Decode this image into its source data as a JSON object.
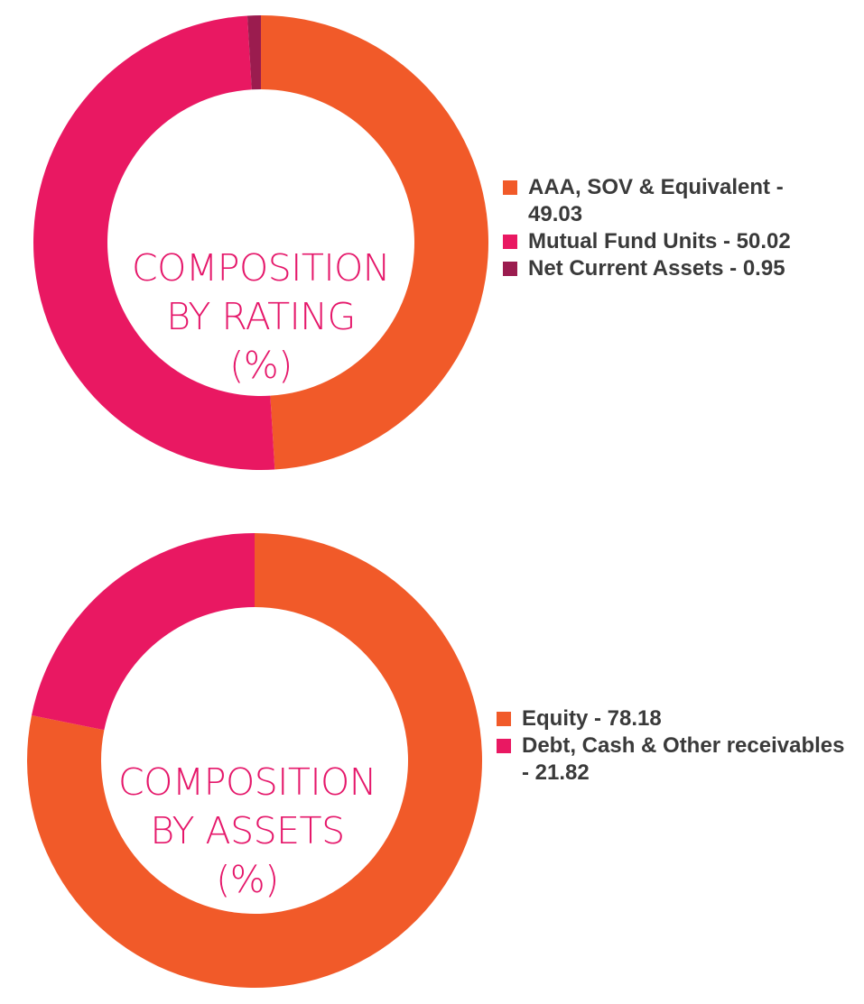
{
  "colors": {
    "orange": "#f15a29",
    "pink": "#e91862",
    "maroon": "#9b1c4f"
  },
  "chart_data": [
    {
      "type": "pie",
      "style": "donut",
      "title_lines": [
        "COMPOSITION",
        "BY RATING",
        "(%)"
      ],
      "slices": [
        {
          "label": "AAA, SOV & Equivalent",
          "value": 49.03,
          "color": "#f15a29",
          "legend_lines": [
            "AAA, SOV & Equivalent -",
            "49.03"
          ]
        },
        {
          "label": "Mutual Fund Units",
          "value": 50.02,
          "color": "#e91862",
          "legend_lines": [
            "Mutual Fund Units - 50.02"
          ]
        },
        {
          "label": "Net Current Assets",
          "value": 0.95,
          "color": "#9b1c4f",
          "legend_lines": [
            "Net Current Assets - 0.95"
          ]
        }
      ],
      "legend_position": "right"
    },
    {
      "type": "pie",
      "style": "donut",
      "title_lines": [
        "COMPOSITION",
        "BY ASSETS",
        "(%)"
      ],
      "slices": [
        {
          "label": "Equity",
          "value": 78.18,
          "color": "#f15a29",
          "legend_lines": [
            "Equity - 78.18"
          ]
        },
        {
          "label": "Debt, Cash & Other receivables",
          "value": 21.82,
          "color": "#e91862",
          "legend_lines": [
            "Debt, Cash & Other receivables",
            "- 21.82"
          ]
        }
      ],
      "legend_position": "right"
    }
  ]
}
